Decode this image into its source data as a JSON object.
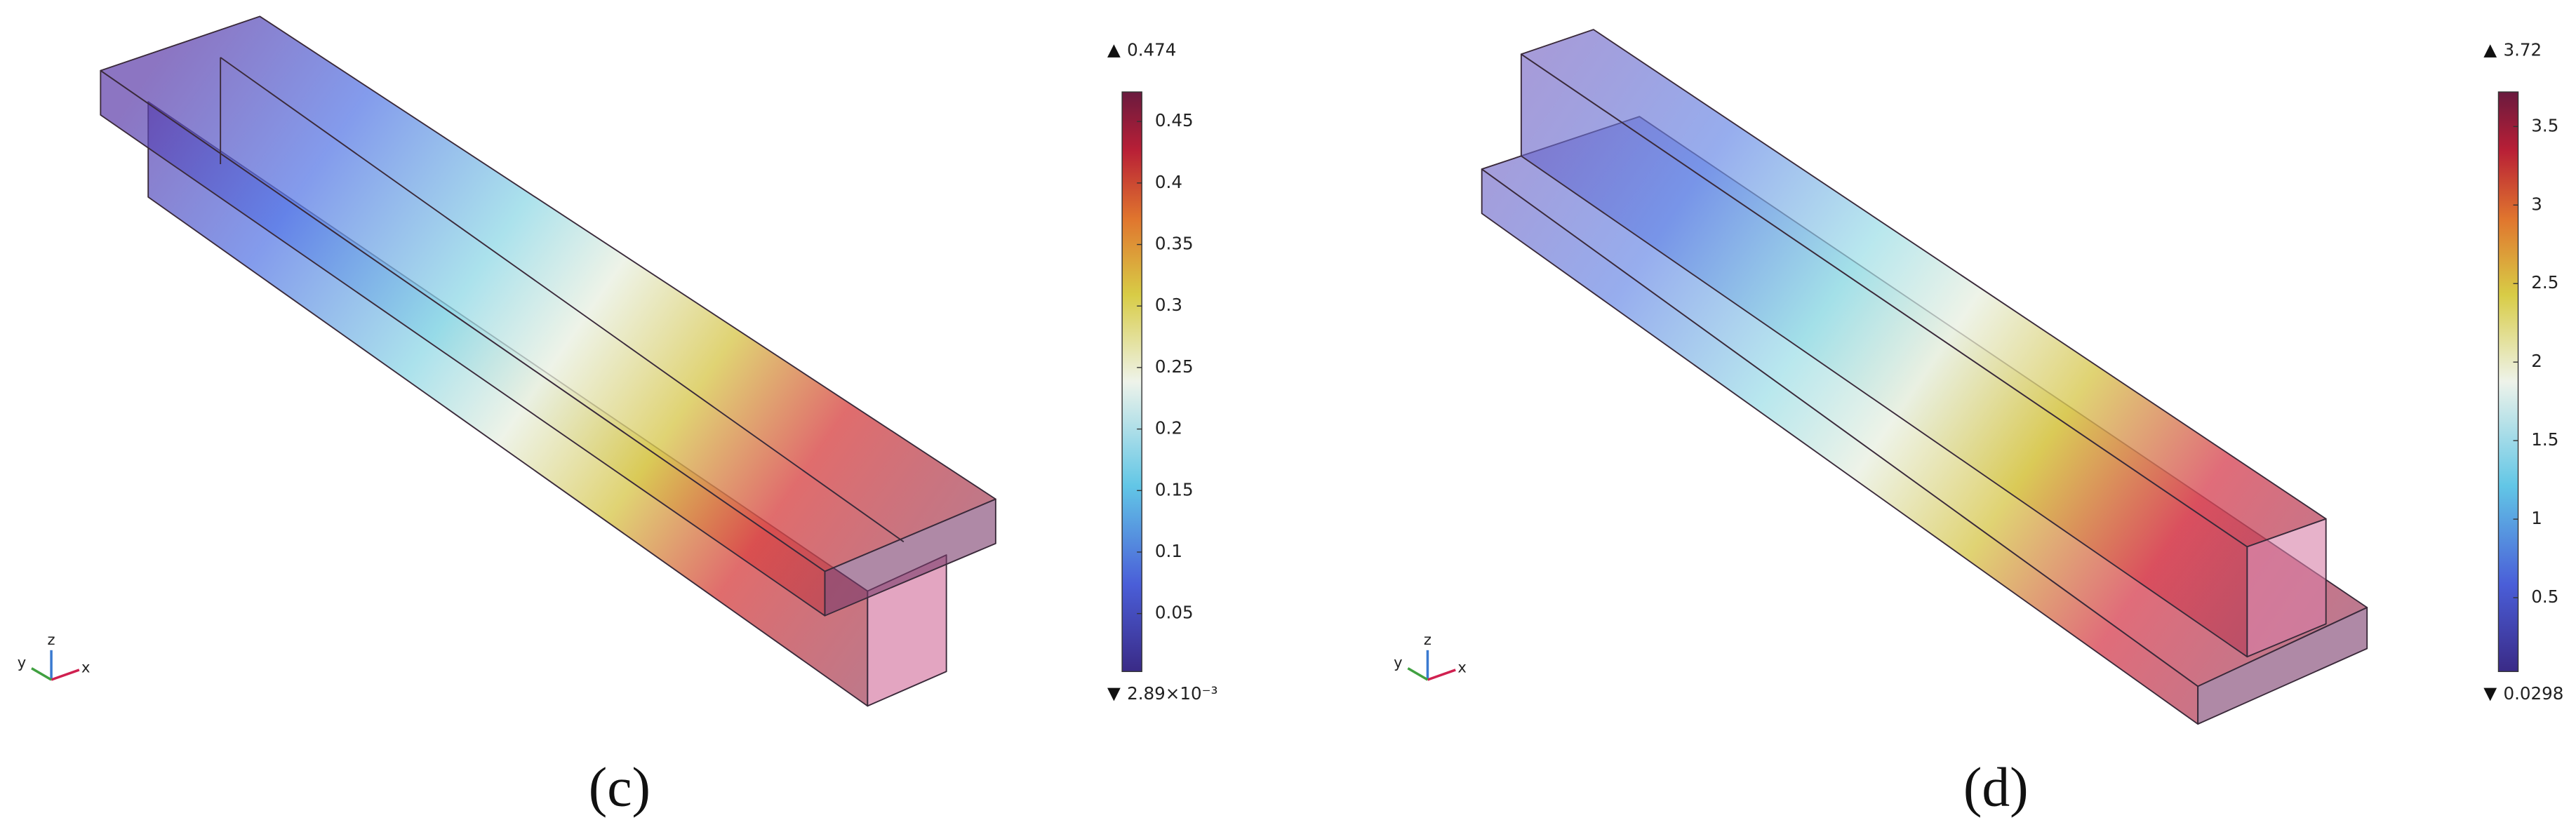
{
  "panels": [
    {
      "label": "(c)",
      "axes": [
        "x",
        "y",
        "z"
      ],
      "colorbar": {
        "max": 0.474,
        "min": {
          "value": 0.00289,
          "label": "2.89×10⁻³"
        },
        "ticks": [
          0.05,
          0.1,
          0.15,
          0.2,
          0.25,
          0.3,
          0.35,
          0.4,
          0.45
        ]
      }
    },
    {
      "label": "(d)",
      "axes": [
        "x",
        "y",
        "z"
      ],
      "colorbar": {
        "max": 3.72,
        "min": 0.0298,
        "ticks": [
          0.5,
          1,
          1.5,
          2,
          2.5,
          3,
          3.5
        ]
      }
    }
  ]
}
